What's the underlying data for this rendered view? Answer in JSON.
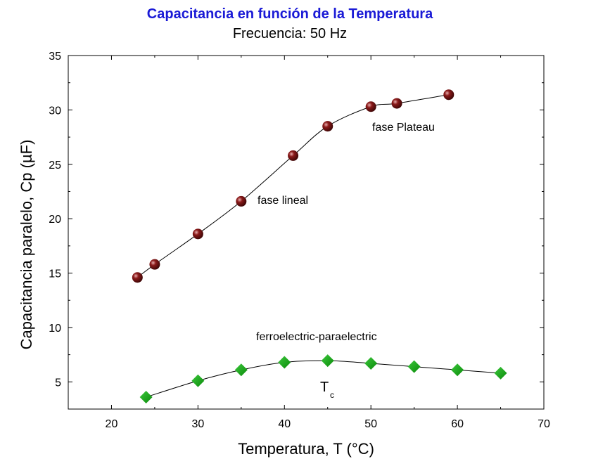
{
  "chart_data": {
    "type": "line",
    "title": "Capacitancia en función de la Temperatura",
    "subtitle": "Frecuencia: 50 Hz",
    "xlabel": "Temperatura, T (°C)",
    "ylabel": "Capacitancia paralelo, Cp (µF)",
    "xlim": [
      15,
      70
    ],
    "ylim": [
      2.5,
      35
    ],
    "xticks": [
      20,
      30,
      40,
      50,
      60,
      70
    ],
    "yticks": [
      5,
      10,
      15,
      20,
      25,
      30,
      35
    ],
    "title_color": "#1a1ad6",
    "grid": false,
    "series": [
      {
        "marker": "sphere",
        "color": "#8b1a1a",
        "points": [
          {
            "x": 23,
            "y": 14.6
          },
          {
            "x": 25,
            "y": 15.8
          },
          {
            "x": 30,
            "y": 18.6
          },
          {
            "x": 35,
            "y": 21.6
          },
          {
            "x": 41,
            "y": 25.8
          },
          {
            "x": 45,
            "y": 28.5
          },
          {
            "x": 50,
            "y": 30.3
          },
          {
            "x": 53,
            "y": 30.6
          },
          {
            "x": 59,
            "y": 31.4
          }
        ]
      },
      {
        "marker": "diamond",
        "color": "#0a8a0a",
        "points": [
          {
            "x": 24,
            "y": 3.6
          },
          {
            "x": 30,
            "y": 5.1
          },
          {
            "x": 35,
            "y": 6.1
          },
          {
            "x": 40,
            "y": 6.8
          },
          {
            "x": 45,
            "y": 6.95
          },
          {
            "x": 50,
            "y": 6.7
          },
          {
            "x": 55,
            "y": 6.4
          },
          {
            "x": 60,
            "y": 6.1
          },
          {
            "x": 65,
            "y": 5.8
          }
        ]
      }
    ],
    "annotations": {
      "plateau": "fase Plateau",
      "lineal": "fase lineal",
      "transition": "ferroelectric-paraelectric",
      "tc_main": "T",
      "tc_sub": "c"
    }
  }
}
